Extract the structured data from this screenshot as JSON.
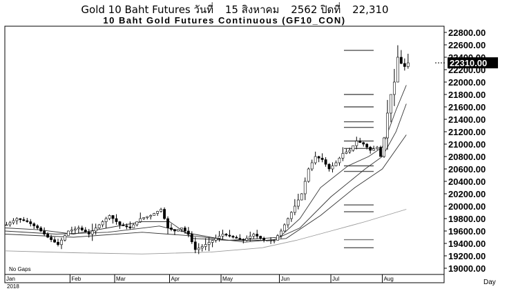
{
  "heading": {
    "prefix": "Gold 10 Baht Futures วันที่",
    "date": "15 สิงหาคม",
    "year_label": "2562 ปิดที่",
    "close": "22,310"
  },
  "chart_data": {
    "type": "candlestick",
    "title": "10 Baht Gold Futures Continuous (GF10_CON)",
    "ylim": [
      18900,
      22900
    ],
    "yticks": [
      "19000.00",
      "19200.00",
      "19400.00",
      "19600.00",
      "19800.00",
      "20000.00",
      "20200.00",
      "20400.00",
      "20600.00",
      "20800.00",
      "21000.00",
      "21200.00",
      "21400.00",
      "21600.00",
      "21800.00",
      "22000.00",
      "22200.00",
      "22400.00",
      "22600.00",
      "22800.00"
    ],
    "last_price": 22310,
    "last_label": "22310.00",
    "x_label": "Day",
    "year_label": "2018",
    "gaps_label": "No Gaps",
    "months": [
      {
        "label": "Jan",
        "day": 0
      },
      {
        "label": "Feb",
        "day": 19
      },
      {
        "label": "Mar",
        "day": 32
      },
      {
        "label": "Apr",
        "day": 48
      },
      {
        "label": "May",
        "day": 63
      },
      {
        "label": "Jun",
        "day": 80
      },
      {
        "label": "Jul",
        "day": 95
      },
      {
        "label": "Aug",
        "day": 110
      }
    ],
    "days": 118,
    "close_path": [
      [
        0,
        19700
      ],
      [
        3,
        19800
      ],
      [
        6,
        19750
      ],
      [
        9,
        19650
      ],
      [
        12,
        19500
      ],
      [
        15,
        19380
      ],
      [
        18,
        19600
      ],
      [
        21,
        19650
      ],
      [
        24,
        19550
      ],
      [
        27,
        19700
      ],
      [
        30,
        19850
      ],
      [
        33,
        19700
      ],
      [
        36,
        19650
      ],
      [
        39,
        19800
      ],
      [
        42,
        19850
      ],
      [
        45,
        19950
      ],
      [
        47,
        19650
      ],
      [
        49,
        19600
      ],
      [
        51,
        19650
      ],
      [
        53,
        19550
      ],
      [
        55,
        19300
      ],
      [
        57,
        19350
      ],
      [
        60,
        19450
      ],
      [
        63,
        19550
      ],
      [
        66,
        19500
      ],
      [
        69,
        19450
      ],
      [
        72,
        19550
      ],
      [
        75,
        19450
      ],
      [
        78,
        19450
      ],
      [
        80,
        19600
      ],
      [
        82,
        19800
      ],
      [
        84,
        20000
      ],
      [
        86,
        20200
      ],
      [
        88,
        20600
      ],
      [
        90,
        20800
      ],
      [
        92,
        20750
      ],
      [
        94,
        20600
      ],
      [
        96,
        20700
      ],
      [
        98,
        20850
      ],
      [
        100,
        20900
      ],
      [
        102,
        21050
      ],
      [
        104,
        21000
      ],
      [
        106,
        20900
      ],
      [
        108,
        20950
      ],
      [
        109,
        20800
      ],
      [
        110,
        21100
      ],
      [
        111,
        21500
      ],
      [
        112,
        21800
      ],
      [
        113,
        22000
      ],
      [
        114,
        22400
      ],
      [
        115,
        22300
      ],
      [
        116,
        22250
      ],
      [
        117,
        22310
      ]
    ],
    "moving_averages": [
      {
        "values": [
          [
            0,
            19650
          ],
          [
            10,
            19620
          ],
          [
            20,
            19550
          ],
          [
            30,
            19650
          ],
          [
            40,
            19750
          ],
          [
            48,
            19750
          ],
          [
            55,
            19480
          ],
          [
            65,
            19450
          ],
          [
            75,
            19480
          ],
          [
            80,
            19500
          ],
          [
            86,
            19800
          ],
          [
            92,
            20300
          ],
          [
            100,
            20650
          ],
          [
            106,
            20800
          ],
          [
            110,
            20950
          ],
          [
            114,
            21550
          ],
          [
            117,
            21950
          ]
        ]
      },
      {
        "values": [
          [
            0,
            19600
          ],
          [
            15,
            19550
          ],
          [
            30,
            19580
          ],
          [
            45,
            19680
          ],
          [
            55,
            19550
          ],
          [
            65,
            19450
          ],
          [
            78,
            19450
          ],
          [
            86,
            19650
          ],
          [
            95,
            20150
          ],
          [
            105,
            20600
          ],
          [
            110,
            20800
          ],
          [
            114,
            21200
          ],
          [
            117,
            21650
          ]
        ]
      },
      {
        "values": [
          [
            0,
            19550
          ],
          [
            20,
            19500
          ],
          [
            40,
            19580
          ],
          [
            55,
            19520
          ],
          [
            70,
            19420
          ],
          [
            82,
            19480
          ],
          [
            92,
            19850
          ],
          [
            102,
            20300
          ],
          [
            110,
            20600
          ],
          [
            117,
            21150
          ]
        ]
      },
      {
        "values": [
          [
            0,
            19280
          ],
          [
            20,
            19250
          ],
          [
            40,
            19230
          ],
          [
            60,
            19260
          ],
          [
            75,
            19330
          ],
          [
            85,
            19450
          ],
          [
            95,
            19600
          ],
          [
            105,
            19750
          ],
          [
            117,
            19950
          ]
        ]
      }
    ],
    "levels": [
      22510,
      21800,
      21600,
      21360,
      21270,
      21050,
      20930,
      20650,
      20560,
      20020,
      19910,
      19460,
      19330
    ],
    "level_colors": [
      "#555555",
      "#555555",
      "#555555",
      "#555555",
      "#555555",
      "#555555",
      "#555555",
      "#555555",
      "#555555",
      "#555555",
      "#555555",
      "#777777",
      "#555555"
    ]
  }
}
